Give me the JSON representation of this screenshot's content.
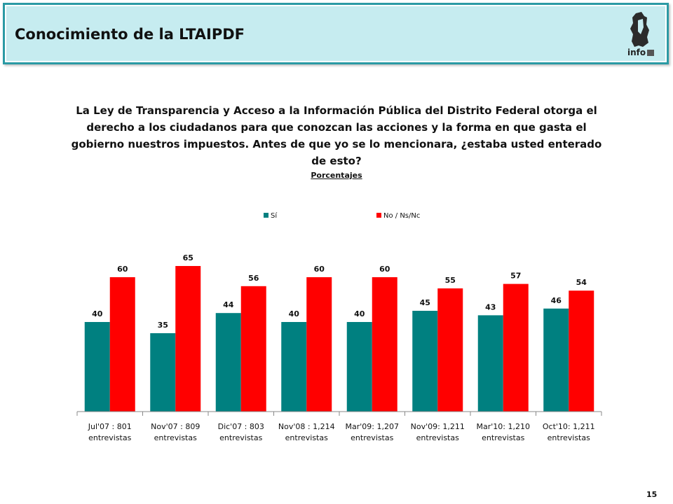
{
  "header": {
    "title": "Conocimiento de la LTAIPDF",
    "logo_text": "info"
  },
  "question": "La Ley de Transparencia y Acceso a la Información Pública del Distrito Federal otorga el derecho a los ciudadanos para que conozcan las acciones y la forma en que gasta el gobierno nuestros impuestos. Antes de que yo se lo mencionara, ¿estaba usted enterado de esto?",
  "subtitle": "Porcentajes",
  "page_number": "15",
  "colors": {
    "si": "#008080",
    "no": "#ff0000",
    "header_bg": "#c6ecf0",
    "header_border": "#2a9aa4"
  },
  "chart_data": {
    "type": "bar",
    "title": "",
    "xlabel": "",
    "ylabel": "",
    "ylim": [
      0,
      100
    ],
    "grid": false,
    "legend": "top",
    "categories": [
      [
        "Jul'07 : 801",
        "entrevistas"
      ],
      [
        "Nov'07 : 809",
        "entrevistas"
      ],
      [
        "Dic'07 : 803",
        "entrevistas"
      ],
      [
        "Nov'08 : 1,214",
        "entrevistas"
      ],
      [
        "Mar'09: 1,207",
        "entrevistas"
      ],
      [
        "Nov'09: 1,211",
        "entrevistas"
      ],
      [
        "Mar'10: 1,210",
        "entrevistas"
      ],
      [
        "Oct'10: 1,211",
        "entrevistas"
      ]
    ],
    "series": [
      {
        "name": "Sí",
        "color": "#008080",
        "values": [
          40,
          35,
          44,
          40,
          40,
          45,
          43,
          46
        ]
      },
      {
        "name": "No / Ns/Nc",
        "color": "#ff0000",
        "values": [
          60,
          65,
          56,
          60,
          60,
          55,
          57,
          54
        ]
      }
    ]
  }
}
